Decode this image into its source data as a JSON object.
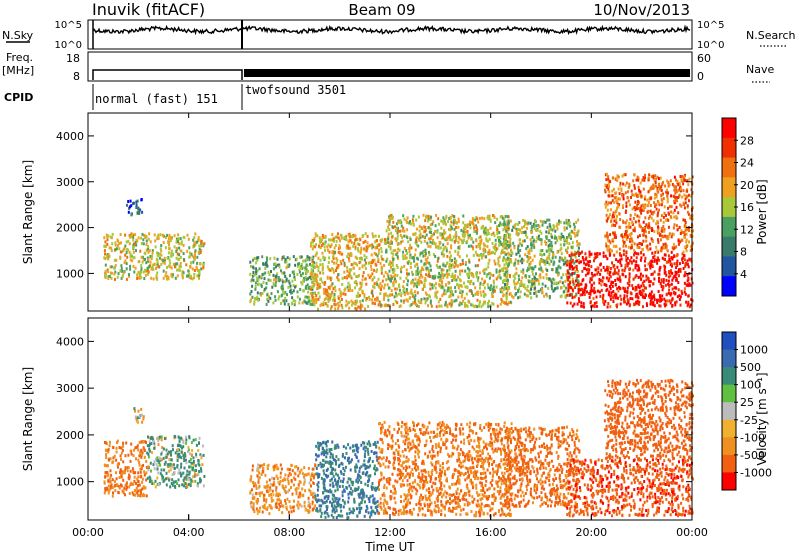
{
  "header": {
    "station": "Inuvik (fitACF)",
    "beam": "Beam 09",
    "date": "10/Nov/2013"
  },
  "panels": {
    "nsky": {
      "left_label": "N.Sky",
      "left_ticks": [
        "10^5",
        "10^0"
      ],
      "right_label": "N.Search",
      "right_ticks": [
        "10^5",
        "10^0"
      ]
    },
    "freq": {
      "left_label_1": "Freq.",
      "left_label_2": "[MHz]",
      "left_ticks": [
        "18",
        "8"
      ],
      "right_label": "Nave",
      "right_ticks": [
        "60",
        "0"
      ]
    },
    "cpid": {
      "label": "CPID",
      "modes": [
        {
          "name": "normal (fast) 151"
        },
        {
          "name": "twofsound 3501"
        }
      ]
    }
  },
  "colors": {
    "power_scale": [
      "#0000ff",
      "#2255a0",
      "#3a7a6a",
      "#4aa060",
      "#a8c83a",
      "#f0a020",
      "#f07010",
      "#f03000",
      "#ff0000"
    ],
    "velocity_scale": [
      "#2050c0",
      "#3a6ab0",
      "#3a8a78",
      "#60c040",
      "#bcbcbc",
      "#f0b030",
      "#f09020",
      "#f06010",
      "#ff0000"
    ]
  },
  "chart_data": [
    {
      "type": "heatmap",
      "name": "power",
      "ylabel": "Slant Range [km]",
      "yticks": [
        1000,
        2000,
        3000,
        4000
      ],
      "ylim": [
        180,
        4500
      ],
      "xlim": [
        "00:00",
        "24:00"
      ],
      "colorbar_label": "Power [dB]",
      "colorbar_ticks": [
        4,
        8,
        12,
        16,
        20,
        24,
        28
      ],
      "colorbar_range": [
        0,
        30
      ],
      "regions": [
        {
          "t0": 0.6,
          "t1": 4.6,
          "r0": 900,
          "r1": 1900,
          "level": 16
        },
        {
          "t0": 1.5,
          "t1": 2.2,
          "r0": 2300,
          "r1": 2650,
          "level": 6
        },
        {
          "t0": 6.4,
          "t1": 9.0,
          "r0": 350,
          "r1": 1400,
          "level": 12
        },
        {
          "t0": 8.8,
          "t1": 11.8,
          "r0": 250,
          "r1": 1900,
          "level": 18
        },
        {
          "t0": 11.8,
          "t1": 16.8,
          "r0": 300,
          "r1": 2300,
          "level": 16
        },
        {
          "t0": 16.5,
          "t1": 19.5,
          "r0": 500,
          "r1": 2200,
          "level": 14
        },
        {
          "t0": 19.0,
          "t1": 24.0,
          "r0": 300,
          "r1": 1500,
          "level": 28
        },
        {
          "t0": 20.5,
          "t1": 24.0,
          "r0": 1500,
          "r1": 3200,
          "level": 22
        }
      ]
    },
    {
      "type": "heatmap",
      "name": "velocity",
      "ylabel": "Slant Range [km]",
      "yticks": [
        1000,
        2000,
        3000,
        4000
      ],
      "ylim": [
        180,
        4500
      ],
      "xlabel": "Time UT",
      "xticks": [
        "00:00",
        "04:00",
        "08:00",
        "12:00",
        "16:00",
        "20:00",
        "00:00"
      ],
      "xlim": [
        "00:00",
        "24:00"
      ],
      "colorbar_label": "Velocity [m s⁻¹]",
      "colorbar_ticks": [
        "1000",
        "500",
        "100",
        "25",
        "-25",
        "-100",
        "-500",
        "-1000"
      ],
      "regions": [
        {
          "t0": 0.6,
          "t1": 2.3,
          "r0": 700,
          "r1": 1900,
          "velocity": -300
        },
        {
          "t0": 2.3,
          "t1": 4.6,
          "r0": 900,
          "r1": 2000,
          "velocity": 100
        },
        {
          "t0": 1.8,
          "t1": 2.2,
          "r0": 2300,
          "r1": 2650,
          "velocity": 0
        },
        {
          "t0": 6.4,
          "t1": 9.0,
          "r0": 350,
          "r1": 1400,
          "velocity": -200
        },
        {
          "t0": 9.0,
          "t1": 11.5,
          "r0": 250,
          "r1": 1900,
          "velocity": 300
        },
        {
          "t0": 11.5,
          "t1": 16.8,
          "r0": 300,
          "r1": 2300,
          "velocity": -300
        },
        {
          "t0": 16.5,
          "t1": 19.5,
          "r0": 500,
          "r1": 2200,
          "velocity": -400
        },
        {
          "t0": 19.0,
          "t1": 24.0,
          "r0": 300,
          "r1": 1500,
          "velocity": -600
        },
        {
          "t0": 20.5,
          "t1": 24.0,
          "r0": 1500,
          "r1": 3200,
          "velocity": -500
        }
      ]
    }
  ]
}
